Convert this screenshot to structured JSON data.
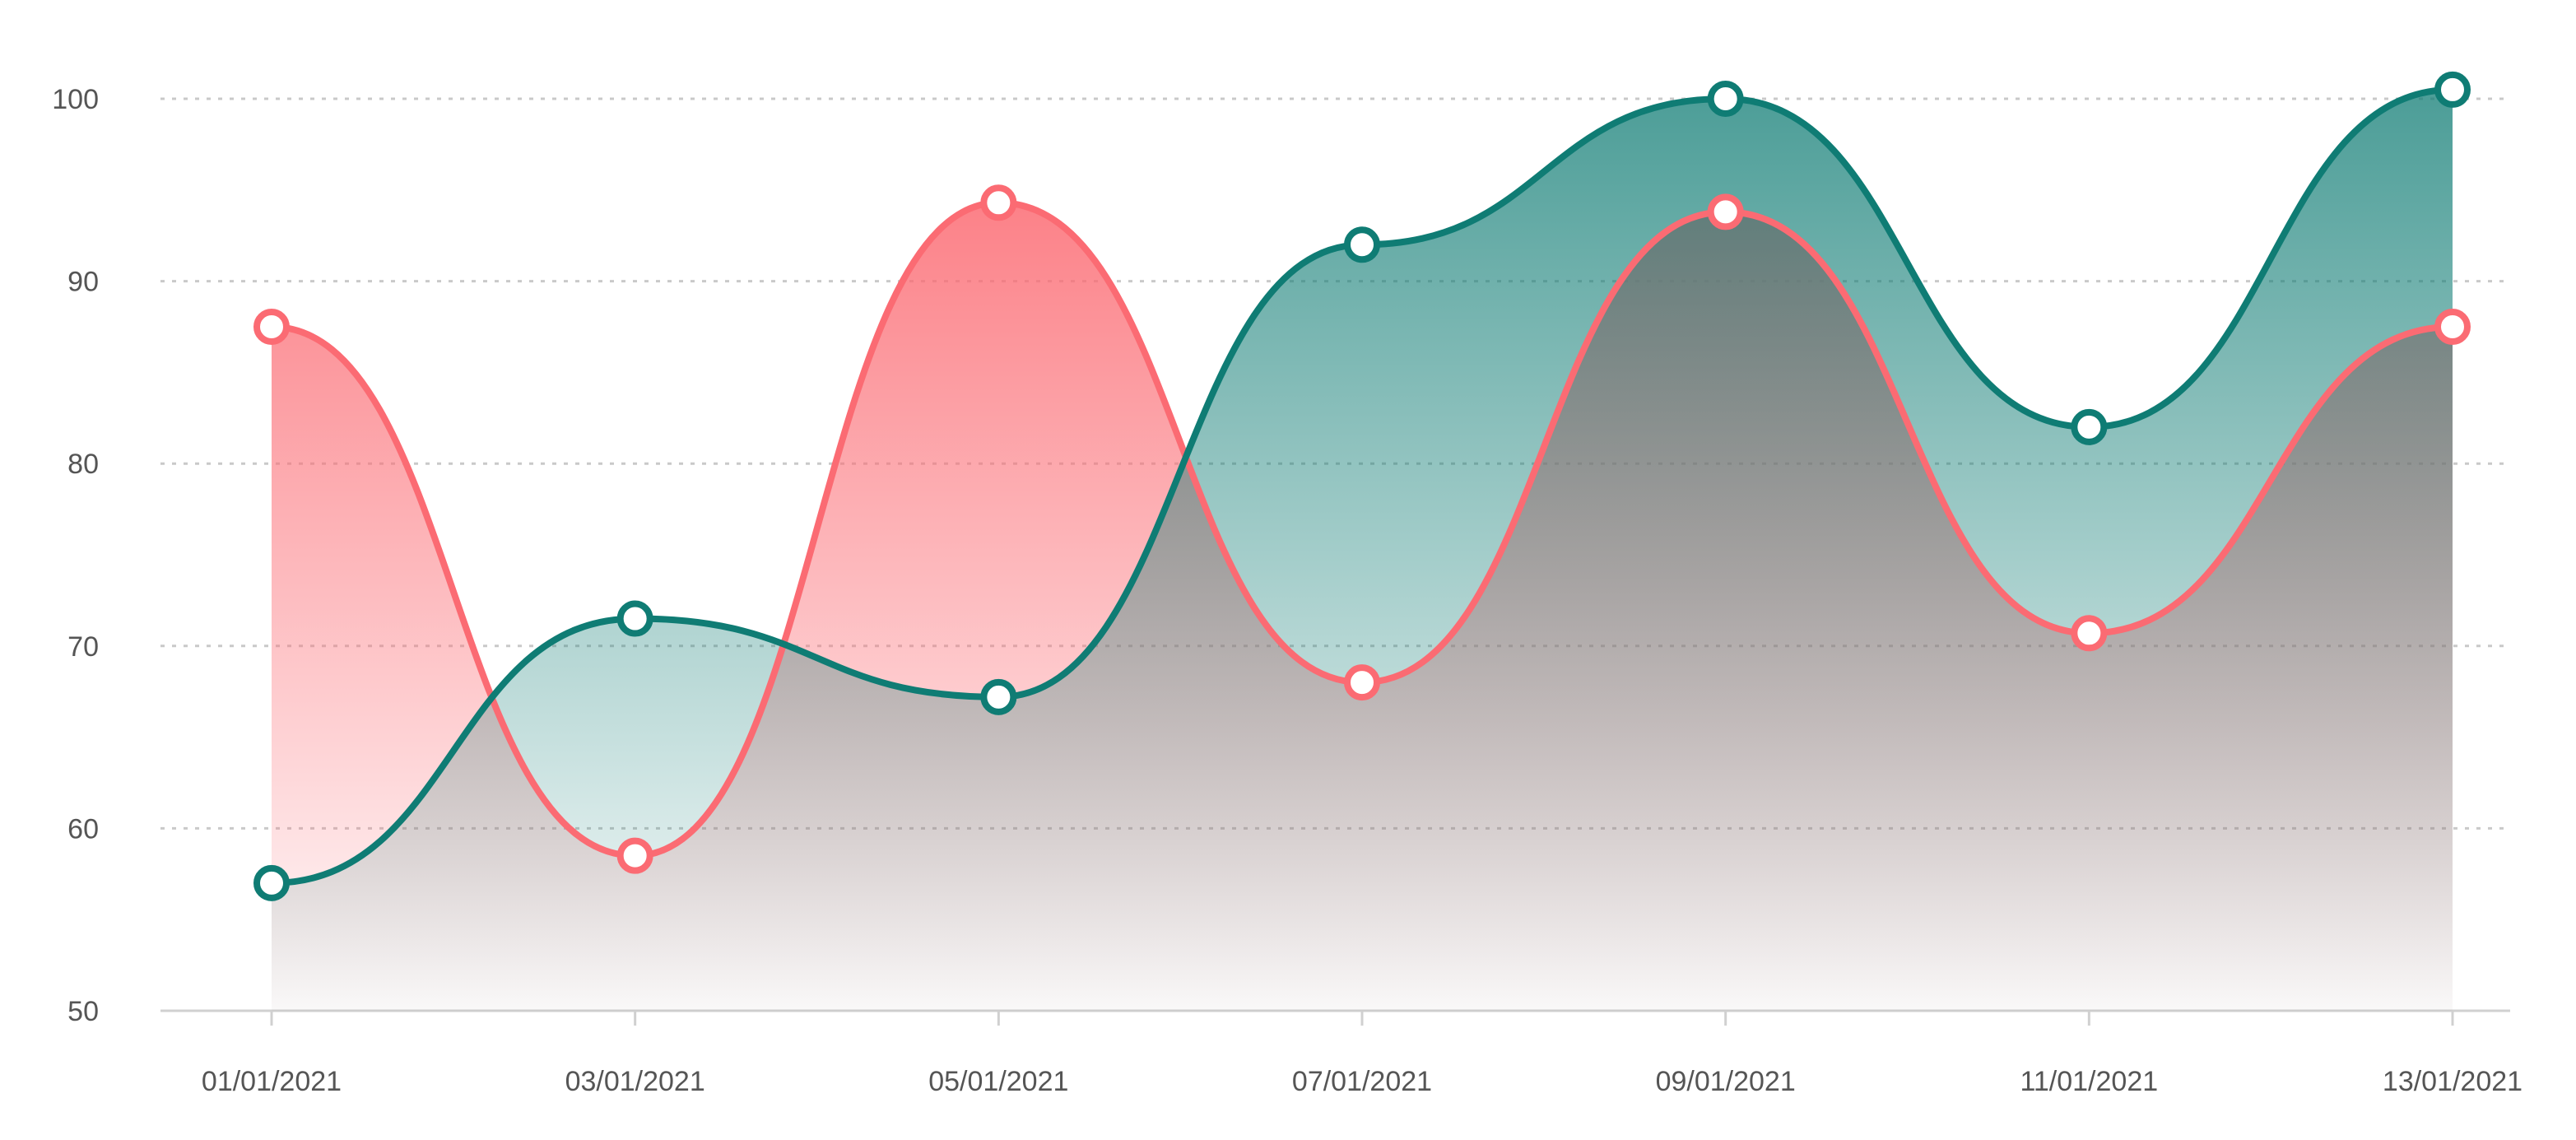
{
  "chart_data": {
    "type": "area",
    "title": "",
    "xlabel": "",
    "ylabel": "",
    "x": [
      "01/01/2021",
      "03/01/2021",
      "05/01/2021",
      "07/01/2021",
      "09/01/2021",
      "11/01/2021",
      "13/01/2021"
    ],
    "xtick_labels": [
      "01/01/2021",
      "03/01/2021",
      "05/01/2021",
      "07/01/2021",
      "09/01/2021",
      "11/01/2021",
      "13/01/2021"
    ],
    "ylim": [
      50,
      100
    ],
    "yticks": [
      50,
      60,
      70,
      80,
      90,
      100
    ],
    "ytick_labels": [
      "50",
      "60",
      "70",
      "80",
      "90",
      "100"
    ],
    "grid": true,
    "legend": "none",
    "series": [
      {
        "color": "#fb6b73",
        "values": [
          87.5,
          58.5,
          94.3,
          68.0,
          93.8,
          70.7,
          87.5
        ]
      },
      {
        "color": "#0f7c74",
        "values": [
          57.0,
          71.5,
          67.2,
          92.0,
          100.0,
          82.0,
          100.5
        ]
      }
    ]
  }
}
